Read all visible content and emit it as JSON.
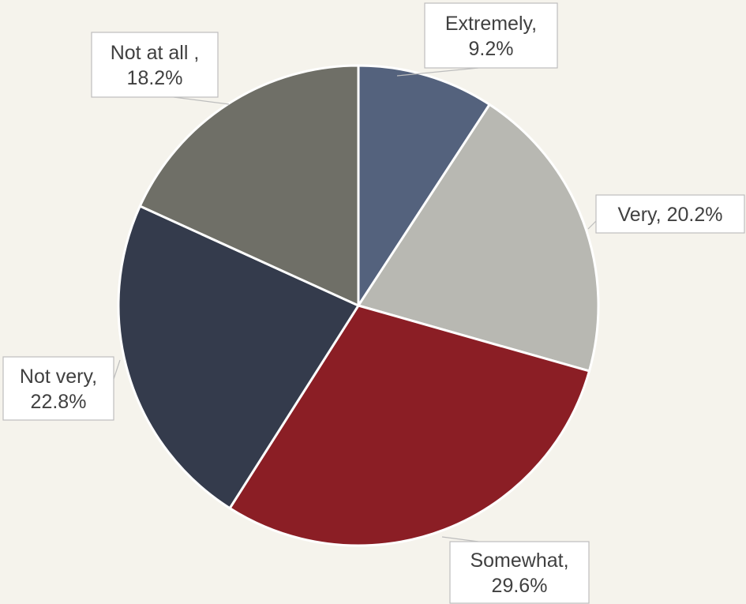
{
  "chart_data": {
    "type": "pie",
    "title": "",
    "categories": [
      "Extremely",
      "Very",
      "Somewhat",
      "Not very",
      "Not at all "
    ],
    "values": [
      9.2,
      20.2,
      29.6,
      22.8,
      18.2
    ],
    "unit": "%",
    "start_angle": "12 o'clock",
    "direction": "clockwise",
    "labels": [
      {
        "lines": [
          "Extremely,",
          "9.2%"
        ]
      },
      {
        "lines": [
          "Very, 20.2%"
        ]
      },
      {
        "lines": [
          "Somewhat,",
          "29.6%"
        ]
      },
      {
        "lines": [
          "Not very,",
          "22.8%"
        ]
      },
      {
        "lines": [
          "Not at all ,",
          "18.2%"
        ]
      }
    ],
    "colors": [
      "#54627d",
      "#b8b8b2",
      "#8b1e25",
      "#343b4c",
      "#6f6f67"
    ],
    "background": "#f5f3ec",
    "legend": "none"
  }
}
